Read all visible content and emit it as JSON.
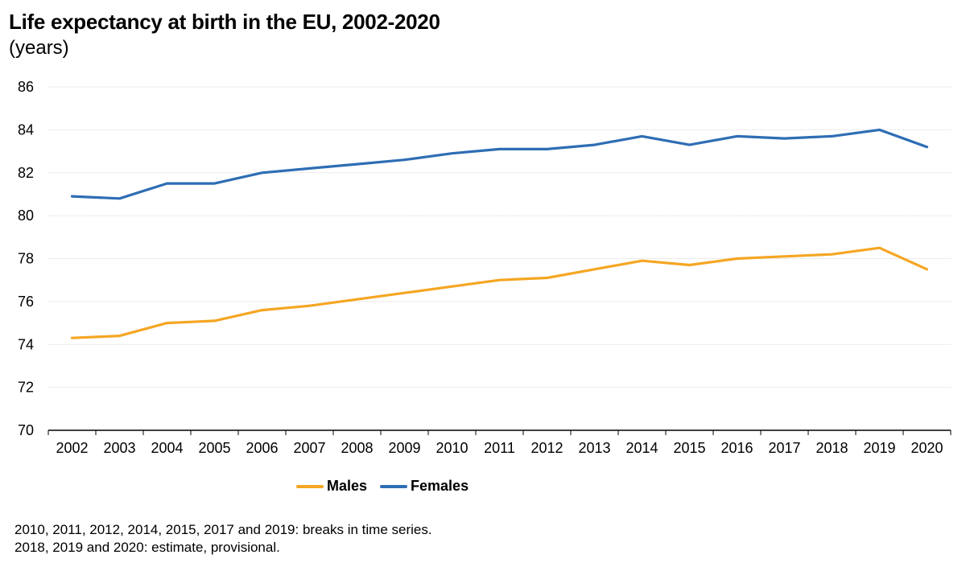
{
  "chart_data": {
    "type": "line",
    "title": "Life expectancy at birth in the EU, 2002-2020",
    "subtitle": "(years)",
    "xlabel": "",
    "ylabel": "",
    "ylim": [
      70,
      86
    ],
    "yticks": [
      70,
      72,
      74,
      76,
      78,
      80,
      82,
      84,
      86
    ],
    "grid": true,
    "legend_position": "bottom-center",
    "categories": [
      "2002",
      "2003",
      "2004",
      "2005",
      "2006",
      "2007",
      "2008",
      "2009",
      "2010",
      "2011",
      "2012",
      "2013",
      "2014",
      "2015",
      "2016",
      "2017",
      "2018",
      "2019",
      "2020"
    ],
    "series": [
      {
        "name": "Males",
        "color": "#F5A623",
        "values": [
          74.3,
          74.4,
          75.0,
          75.1,
          75.6,
          75.8,
          76.1,
          76.4,
          76.7,
          77.0,
          77.1,
          77.5,
          77.9,
          77.7,
          78.0,
          78.1,
          78.2,
          78.5,
          77.5
        ]
      },
      {
        "name": "Females",
        "color": "#2E6DB4",
        "values": [
          80.9,
          80.8,
          81.5,
          81.5,
          82.0,
          82.2,
          82.4,
          82.6,
          82.9,
          83.1,
          83.1,
          83.3,
          83.7,
          83.3,
          83.7,
          83.6,
          83.7,
          84.0,
          83.2
        ]
      }
    ],
    "notes": [
      "2010, 2011, 2012, 2014, 2015, 2017 and 2019: breaks in time series.",
      "2018, 2019 and 2020: estimate, provisional."
    ]
  }
}
